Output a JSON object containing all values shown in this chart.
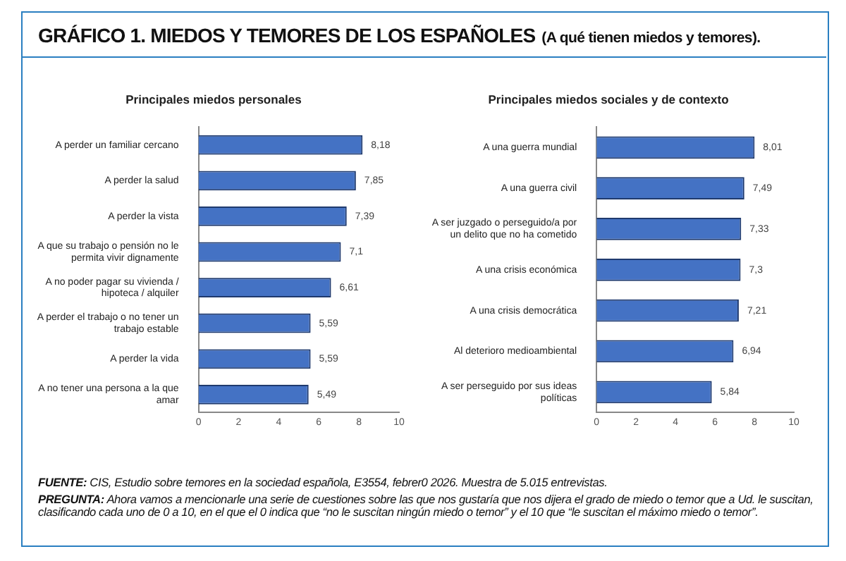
{
  "chart_data": [
    {
      "type": "other",
      "title": "GRÁFICO 1. MIEDOS Y TEMORES DE LOS ESPAÑOLES",
      "subtitle": "(A qué tienen miedos y temores)."
    },
    {
      "type": "bar",
      "orientation": "horizontal",
      "title": "Principales miedos personales",
      "categories": [
        "A perder un familiar cercano",
        "A perder la salud",
        "A perder la vista",
        "A que su trabajo o pensión no le permita vivir dignamente",
        "A no poder pagar su vivienda / hipoteca / alquiler",
        "A perder el trabajo o no tener un trabajo estable",
        "A perder la vida",
        "A no tener una persona a la que amar"
      ],
      "values": [
        8.18,
        7.85,
        7.39,
        7.1,
        6.61,
        5.59,
        5.59,
        5.49
      ],
      "value_labels": [
        "8,18",
        "7,85",
        "7,39",
        "7,1",
        "6,61",
        "5,59",
        "5,59",
        "5,49"
      ],
      "color": "#4472c4",
      "xlim": [
        0,
        10
      ],
      "xticks": [
        0,
        2,
        4,
        6,
        8,
        10
      ],
      "grid": false,
      "legend": false
    },
    {
      "type": "bar",
      "orientation": "horizontal",
      "title": "Principales miedos sociales y de contexto",
      "categories": [
        "A una guerra mundial",
        "A una guerra civil",
        "A ser juzgado o perseguido/a por un delito que no ha cometido",
        "A una crisis económica",
        "A una crisis democrática",
        "Al deterioro medioambiental",
        "A ser perseguido por sus ideas políticas"
      ],
      "values": [
        8.01,
        7.49,
        7.33,
        7.3,
        7.21,
        6.94,
        5.84
      ],
      "value_labels": [
        "8,01",
        "7,49",
        "7,33",
        "7,3",
        "7,21",
        "6,94",
        "5,84"
      ],
      "color": "#4472c4",
      "xlim": [
        0,
        10
      ],
      "xticks": [
        0,
        2,
        4,
        6,
        8,
        10
      ],
      "grid": false,
      "legend": false
    },
    {
      "type": "other",
      "annotations": [
        "FUENTE: CIS, Estudio sobre temores en la sociedad española, E3554, febrer0 2026. Muestra de 5.015 entrevistas.",
        "PREGUNTA: Ahora vamos a mencionarle una serie de cuestiones sobre las que nos gustaría que nos dijera el grado de miedo o temor que a Ud. le suscitan, clasificando cada uno de 0 a 10, en el que el 0 indica que “no le suscitan ningún miedo o temor” y el 10 que “le suscitan el máximo miedo o temor”."
      ]
    }
  ]
}
